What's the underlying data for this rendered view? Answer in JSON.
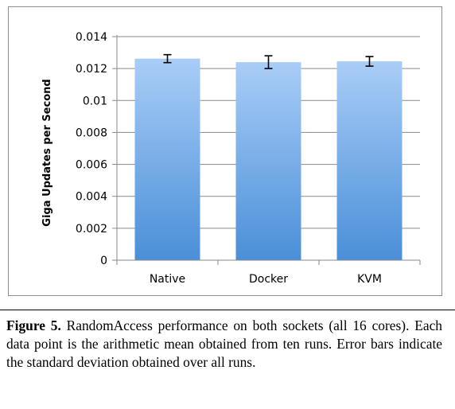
{
  "chart_data": {
    "type": "bar",
    "categories": [
      "Native",
      "Docker",
      "KVM"
    ],
    "values": [
      0.01262,
      0.0124,
      0.01245
    ],
    "errors": [
      0.00025,
      0.0004,
      0.0003
    ],
    "ylabel": "Giga Updates per Second",
    "xlabel": "",
    "title": "",
    "ylim": [
      0,
      0.014
    ],
    "yticks": [
      0,
      0.002,
      0.004,
      0.006,
      0.008,
      0.01,
      0.012,
      0.014
    ],
    "ytick_labels": [
      "0",
      "0.002",
      "0.004",
      "0.006",
      "0.008",
      "0.01",
      "0.012",
      "0.014"
    ],
    "grid": true,
    "bar_color_top": "#a9cdf7",
    "bar_color_bottom": "#4a8fd8"
  },
  "caption": {
    "label": "Figure 5.",
    "text": " RandomAccess performance on both sockets (all 16 cores). Each data point is the arithmetic mean obtained from ten runs. Error bars indicate the standard deviation obtained over all runs."
  }
}
